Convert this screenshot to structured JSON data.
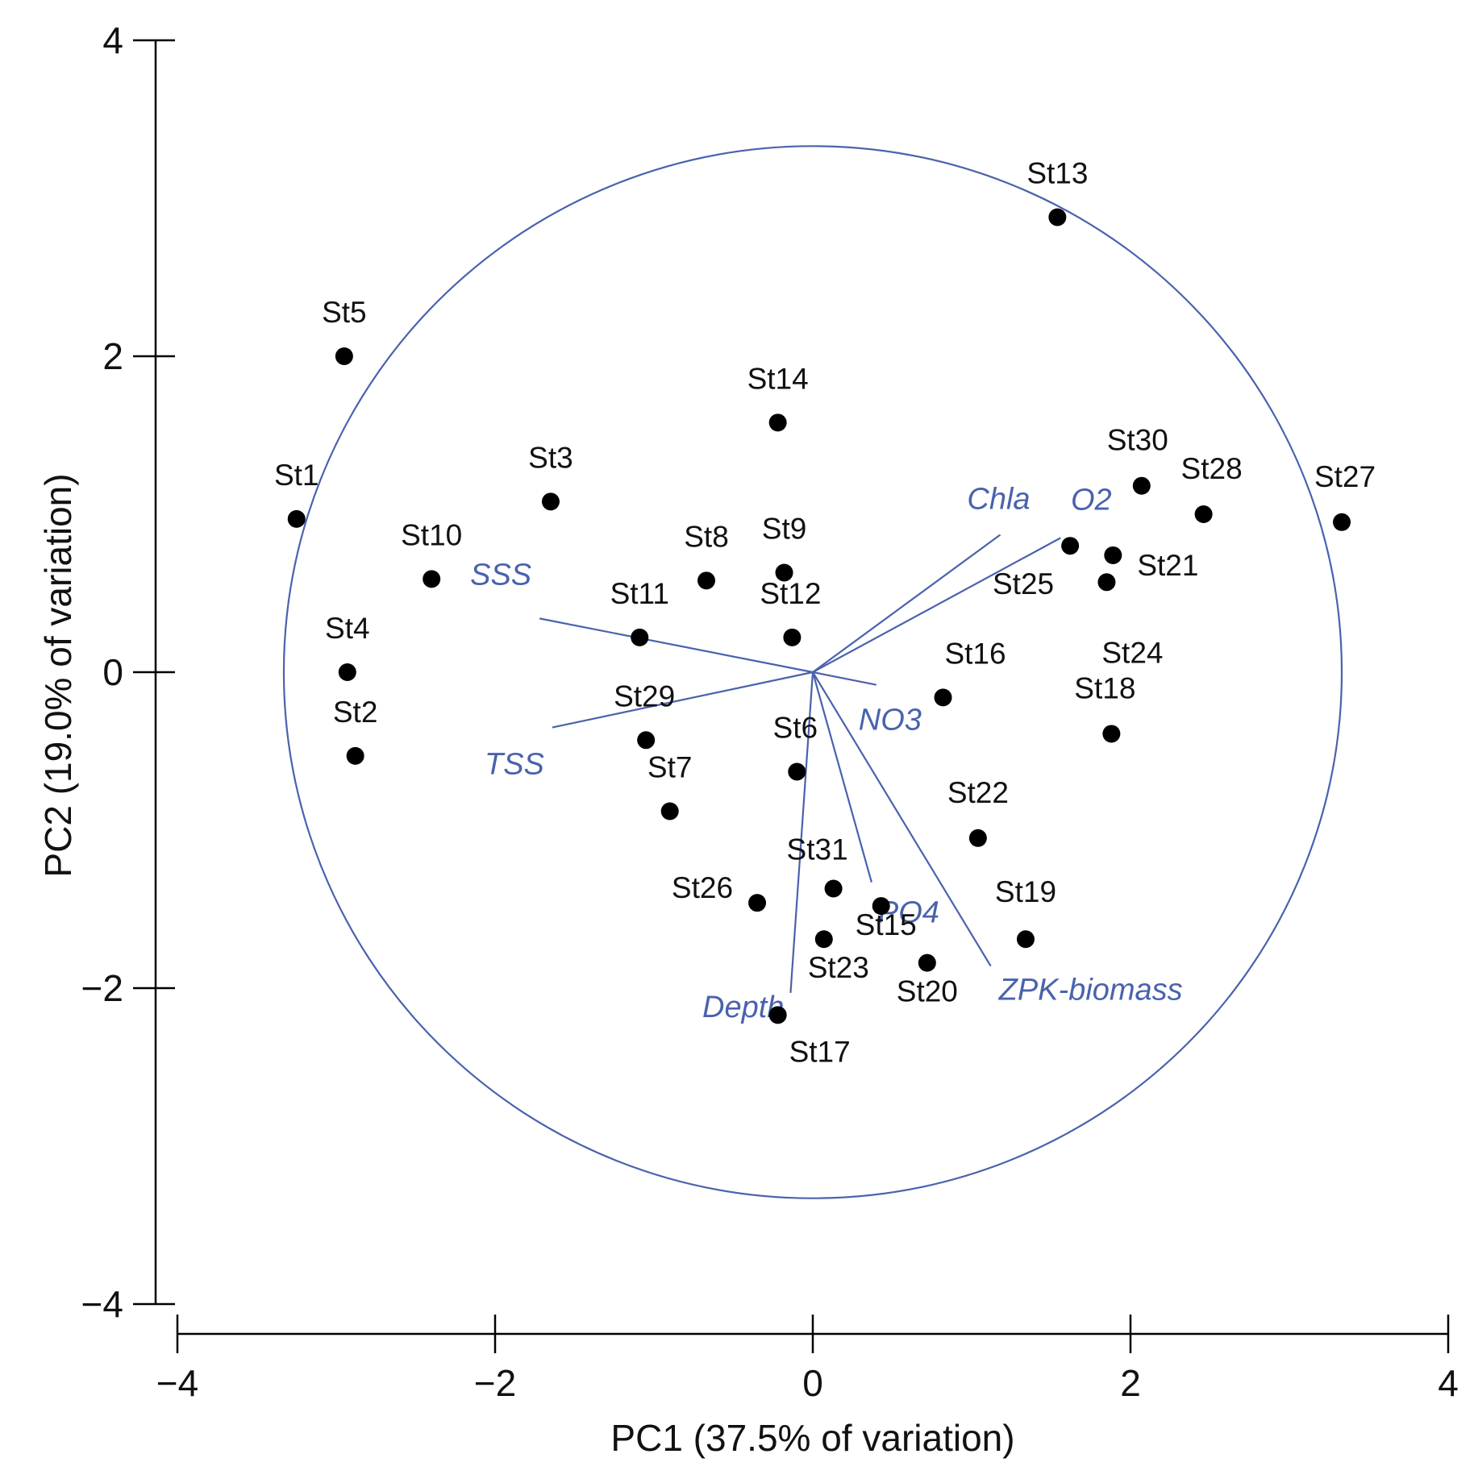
{
  "chart_data": {
    "type": "scatter",
    "subtype": "pca-biplot",
    "xlabel": "PC1 (37.5% of variation)",
    "ylabel": "PC2 (19.0% of variation)",
    "xlim": [
      -4,
      4
    ],
    "ylim": [
      -4,
      4
    ],
    "xticks": [
      "−4",
      "−2",
      "0",
      "2",
      "4"
    ],
    "yticks": [
      "4",
      "2",
      "0",
      "−2",
      "−4"
    ],
    "grid": false,
    "colors": {
      "points": "#000000",
      "vectors": "#4a62ad",
      "axes": "#000000"
    },
    "correlation_circle": {
      "center": [
        0,
        0
      ],
      "radius": 3.33
    },
    "stations": [
      {
        "name": "St1",
        "x": -3.25,
        "y": 0.97
      },
      {
        "name": "St2",
        "x": -2.88,
        "y": -0.53
      },
      {
        "name": "St3",
        "x": -1.65,
        "y": 1.08
      },
      {
        "name": "St4",
        "x": -2.93,
        "y": 0.0
      },
      {
        "name": "St5",
        "x": -2.95,
        "y": 2.0
      },
      {
        "name": "St6",
        "x": -0.1,
        "y": -0.63
      },
      {
        "name": "St7",
        "x": -0.9,
        "y": -0.88
      },
      {
        "name": "St8",
        "x": -0.67,
        "y": 0.58
      },
      {
        "name": "St9",
        "x": -0.18,
        "y": 0.63
      },
      {
        "name": "St10",
        "x": -2.4,
        "y": 0.59
      },
      {
        "name": "St11",
        "x": -1.09,
        "y": 0.22
      },
      {
        "name": "St12",
        "x": -0.13,
        "y": 0.22
      },
      {
        "name": "St13",
        "x": 1.54,
        "y": 2.88
      },
      {
        "name": "St14",
        "x": -0.22,
        "y": 1.58
      },
      {
        "name": "St15",
        "x": 0.43,
        "y": -1.48
      },
      {
        "name": "St16",
        "x": 0.82,
        "y": -0.16
      },
      {
        "name": "St17",
        "x": -0.22,
        "y": -2.17
      },
      {
        "name": "St18",
        "x": 1.88,
        "y": -0.39
      },
      {
        "name": "St19",
        "x": 1.34,
        "y": -1.69
      },
      {
        "name": "St20",
        "x": 0.72,
        "y": -1.84
      },
      {
        "name": "St21",
        "x": 1.89,
        "y": 0.74
      },
      {
        "name": "St22",
        "x": 1.04,
        "y": -1.05
      },
      {
        "name": "St23",
        "x": 0.07,
        "y": -1.69
      },
      {
        "name": "St24",
        "x": 1.85,
        "y": 0.57
      },
      {
        "name": "St25",
        "x": 1.62,
        "y": 0.8
      },
      {
        "name": "St26",
        "x": -0.35,
        "y": -1.46
      },
      {
        "name": "St27",
        "x": 3.33,
        "y": 0.95
      },
      {
        "name": "St28",
        "x": 2.46,
        "y": 1.0
      },
      {
        "name": "St29",
        "x": -1.05,
        "y": -0.43
      },
      {
        "name": "St30",
        "x": 2.07,
        "y": 1.18
      },
      {
        "name": "St31",
        "x": 0.13,
        "y": -1.37
      }
    ],
    "vectors": [
      {
        "name": "Chla",
        "x": 1.18,
        "y": 0.87
      },
      {
        "name": "O2",
        "x": 1.56,
        "y": 0.85
      },
      {
        "name": "SSS",
        "x": -1.72,
        "y": 0.34
      },
      {
        "name": "TSS",
        "x": -1.64,
        "y": -0.35
      },
      {
        "name": "NO3",
        "x": 0.4,
        "y": -0.08
      },
      {
        "name": "PO4",
        "x": 0.37,
        "y": -1.33
      },
      {
        "name": "Depth",
        "x": -0.14,
        "y": -2.03
      },
      {
        "name": "ZPK-biomass",
        "x": 1.12,
        "y": -1.86
      }
    ]
  }
}
